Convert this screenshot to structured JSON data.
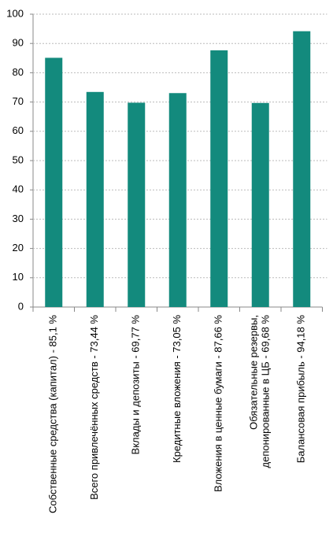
{
  "chart_data": {
    "type": "bar",
    "categories": [
      "Собственные средства (капитал) - 85,1 %",
      "Всего привлечённых средств - 73,44 %",
      "Вклады и депозиты - 69,77 %",
      "Кредитные вложения - 73,05 %",
      "Вложения в ценные бумаги - 87,66 %",
      [
        "Обязательные резервы,",
        "депонированные в ЦБ - 69,68 %"
      ],
      "Балансовая прибыль - 94,18 %"
    ],
    "values": [
      85.1,
      73.44,
      69.77,
      73.05,
      87.66,
      69.68,
      94.18
    ],
    "color": "#138a7d",
    "ylim": [
      0,
      100
    ],
    "yticks": [
      0,
      10,
      20,
      30,
      40,
      50,
      60,
      70,
      80,
      90,
      100
    ],
    "grid": true
  }
}
